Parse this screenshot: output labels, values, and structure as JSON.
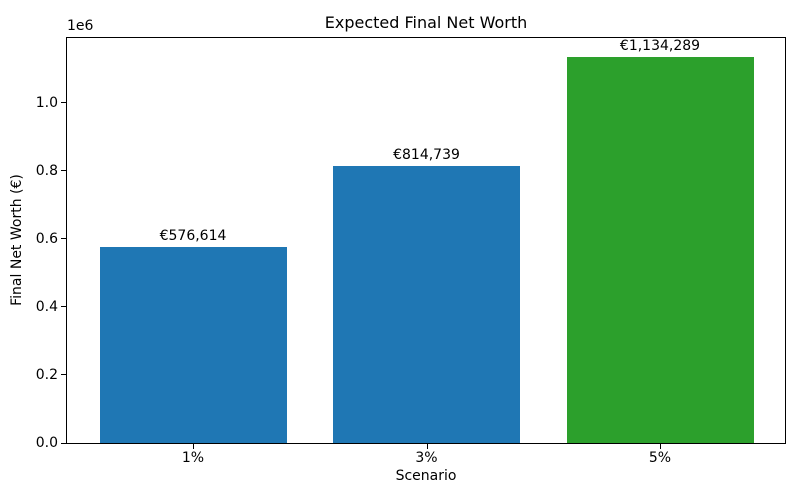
{
  "chart_data": {
    "type": "bar",
    "title": "Expected Final Net Worth",
    "xlabel": "Scenario",
    "ylabel": "Final Net Worth (€)",
    "categories": [
      "1%",
      "3%",
      "5%"
    ],
    "values": [
      576614,
      814739,
      1134289
    ],
    "bar_labels": [
      "€576,614",
      "€814,739",
      "€1,134,289"
    ],
    "bar_colors": [
      "#1f77b4",
      "#1f77b4",
      "#2ca02c"
    ],
    "ylim": [
      0,
      1190000
    ],
    "yticks": [
      0,
      200000,
      400000,
      600000,
      800000,
      1000000
    ],
    "ytick_labels": [
      "0.0",
      "0.2",
      "0.4",
      "0.6",
      "0.8",
      "1.0"
    ],
    "y_offset_text": "1e6",
    "grid": false,
    "legend": "none",
    "background": "#ffffff",
    "text_color": "#000000"
  }
}
